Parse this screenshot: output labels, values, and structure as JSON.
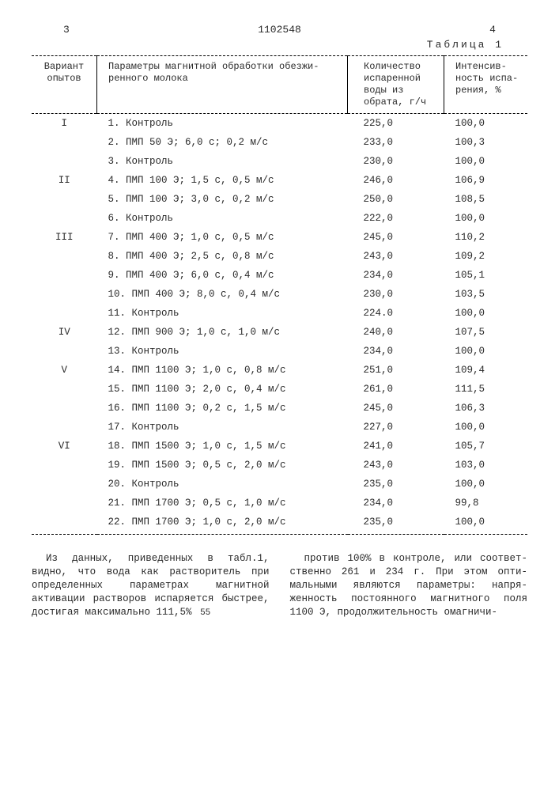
{
  "doc_number": "1102548",
  "page_left": "3",
  "page_right": "4",
  "table_label": "Таблица 1",
  "columns": {
    "c1": "Вариант опытов",
    "c2": "Параметры магнитной обработки обезжи-\nренного молока",
    "c3": "Количество испаренной воды из обрата, г/ч",
    "c4": "Интенсив-\nность испа-\nрения, %"
  },
  "rows": [
    {
      "v": "I",
      "p": "1. Контроль",
      "q": "225,0",
      "i": "100,0"
    },
    {
      "v": "",
      "p": "2. ПМП 50 Э; 6,0 с; 0,2 м/с",
      "q": "233,0",
      "i": "100,3"
    },
    {
      "v": "",
      "p": "3. Контроль",
      "q": "230,0",
      "i": "100,0"
    },
    {
      "v": "II",
      "p": "4. ПМП 100 Э; 1,5 с, 0,5 м/с",
      "q": "246,0",
      "i": "106,9"
    },
    {
      "v": "",
      "p": "5. ПМП 100 Э; 3,0 с, 0,2 м/с",
      "q": "250,0",
      "i": "108,5"
    },
    {
      "v": "",
      "p": "6. Контроль",
      "q": "222,0",
      "i": "100,0"
    },
    {
      "v": "III",
      "p": "7. ПМП 400 Э; 1,0 с, 0,5 м/с",
      "q": "245,0",
      "i": "110,2"
    },
    {
      "v": "",
      "p": "8. ПМП 400 Э; 2,5 с, 0,8 м/с",
      "q": "243,0",
      "i": "109,2"
    },
    {
      "v": "",
      "p": "9. ПМП 400 Э; 6,0 с, 0,4 м/с",
      "q": "234,0",
      "i": "105,1"
    },
    {
      "v": "",
      "p": "10. ПМП 400 Э; 8,0 с, 0,4 м/с",
      "q": "230,0",
      "i": "103,5"
    },
    {
      "v": "",
      "p": "11. Контроль",
      "q": "224.0",
      "i": "100,0"
    },
    {
      "v": "IV",
      "p": "12. ПМП 900 Э; 1,0 с, 1,0 м/с",
      "q": "240,0",
      "i": "107,5"
    },
    {
      "v": "",
      "p": "13. Контроль",
      "q": "234,0",
      "i": "100,0"
    },
    {
      "v": "V",
      "p": "14. ПМП 1100 Э; 1,0 с, 0,8 м/с",
      "q": "251,0",
      "i": "109,4"
    },
    {
      "v": "",
      "p": "15. ПМП 1100 Э; 2,0 с, 0,4 м/с",
      "q": "261,0",
      "i": "111,5"
    },
    {
      "v": "",
      "p": "16. ПМП 1100 Э; 0,2 с, 1,5 м/с",
      "q": "245,0",
      "i": "106,3"
    },
    {
      "v": "",
      "p": "17. Контроль",
      "q": "227,0",
      "i": "100,0"
    },
    {
      "v": "VI",
      "p": "18. ПМП 1500 Э; 1,0 с, 1,5 м/с",
      "q": "241,0",
      "i": "105,7"
    },
    {
      "v": "",
      "p": "19. ПМП 1500 Э; 0,5 с, 2,0 м/с",
      "q": "243,0",
      "i": "103,0"
    },
    {
      "v": "",
      "p": "20. Контроль",
      "q": "235,0",
      "i": "100,0"
    },
    {
      "v": "",
      "p": "21. ПМП 1700 Э; 0,5 с, 1,0 м/с",
      "q": "234,0",
      "i": "99,8"
    },
    {
      "v": "",
      "p": "22. ПМП 1700 Э; 1,0 с, 2,0 м/с",
      "q": "235,0",
      "i": "100,0"
    }
  ],
  "para_left": "Из данных, приведенных в табл.1, видно, что вода как растворитель при определенных параметрах магнитной активации растворов испаряется быст­рее, достигая максимально 111,5%",
  "line_mark": "55",
  "para_right": "против 100% в контроле, или соответ­ственно 261 и 234 г. При этом опти­мальными являются параметры: напря­женность постоянного магнитного поля 1100 Э, продолжительность омагничи-"
}
